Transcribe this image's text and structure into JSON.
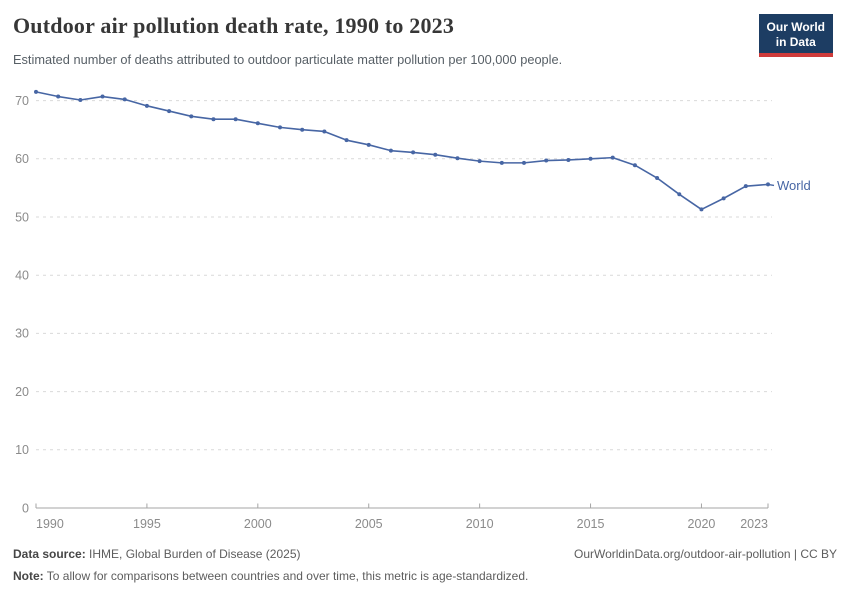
{
  "header": {
    "title": "Outdoor air pollution death rate, 1990 to 2023",
    "subtitle": "Estimated number of deaths attributed to outdoor particulate matter pollution per 100,000 people.",
    "logo": {
      "line1": "Our World",
      "line2": "in Data",
      "bg_color": "#1d3d63",
      "stripe_color": "#cf3b3b"
    }
  },
  "chart_data": {
    "type": "line",
    "title": "Outdoor air pollution death rate, 1990 to 2023",
    "subtitle": "Estimated number of deaths attributed to outdoor particulate matter pollution per 100,000 people.",
    "xlabel": "",
    "ylabel": "",
    "x_ticks": [
      1990,
      1995,
      2000,
      2005,
      2010,
      2015,
      2020,
      2023
    ],
    "y_ticks": [
      0,
      10,
      20,
      30,
      40,
      50,
      60,
      70
    ],
    "xlim": [
      1990,
      2023
    ],
    "ylim": [
      0,
      75
    ],
    "grid": "horizontal-dashed",
    "legend_position": "end-of-line-label",
    "series": [
      {
        "name": "World",
        "color": "#4766a4",
        "x": [
          1990,
          1991,
          1992,
          1993,
          1994,
          1995,
          1996,
          1997,
          1998,
          1999,
          2000,
          2001,
          2002,
          2003,
          2004,
          2005,
          2006,
          2007,
          2008,
          2009,
          2010,
          2011,
          2012,
          2013,
          2014,
          2015,
          2016,
          2017,
          2018,
          2019,
          2020,
          2021,
          2022,
          2023
        ],
        "values": [
          71.5,
          70.7,
          70.1,
          70.7,
          70.2,
          69.1,
          68.2,
          67.3,
          66.8,
          66.8,
          66.1,
          65.4,
          65.0,
          64.7,
          63.2,
          62.4,
          61.4,
          61.1,
          60.7,
          60.1,
          59.6,
          59.3,
          59.3,
          59.7,
          59.8,
          60.0,
          60.2,
          58.9,
          56.7,
          53.9,
          51.3,
          53.2,
          55.3,
          55.6
        ]
      }
    ],
    "colors": {
      "gridline": "#d9d9d9",
      "axis_line": "#a5a5a5",
      "tick_label": "#8b8b8b"
    }
  },
  "footer": {
    "datasource_label": "Data source:",
    "datasource_value": "IHME, Global Burden of Disease (2025)",
    "link": "OurWorldinData.org/outdoor-air-pollution | CC BY",
    "note_label": "Note:",
    "note_value": "To allow for comparisons between countries and over time, this metric is age-standardized."
  }
}
